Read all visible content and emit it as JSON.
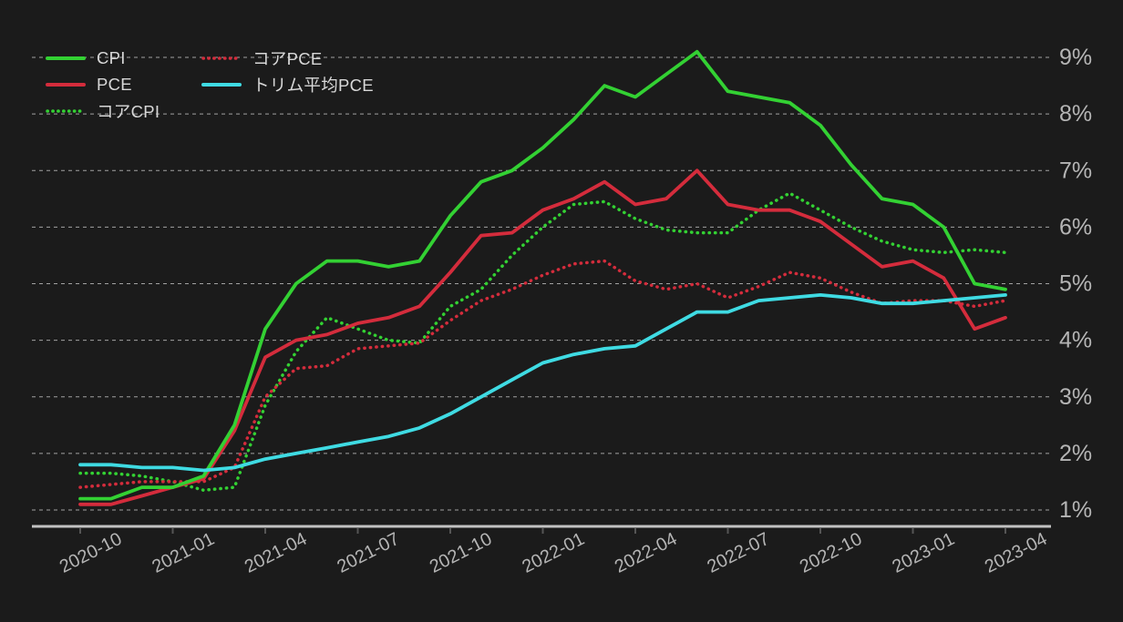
{
  "chart": {
    "background": "#1b1b1b",
    "grid_color": "#d0d0d0",
    "axis_line_color": "#c2c2c2",
    "tick_color": "#555555",
    "tick_label_color": "#b5b5b5",
    "legend_text_color": "#d8d8d8"
  },
  "chart_data": {
    "type": "line",
    "title": "",
    "xlabel": "",
    "ylabel": "",
    "x": [
      "2020-10",
      "2020-11",
      "2020-12",
      "2021-01",
      "2021-02",
      "2021-03",
      "2021-04",
      "2021-05",
      "2021-06",
      "2021-07",
      "2021-08",
      "2021-09",
      "2021-10",
      "2021-11",
      "2021-12",
      "2022-01",
      "2022-02",
      "2022-03",
      "2022-04",
      "2022-05",
      "2022-06",
      "2022-07",
      "2022-08",
      "2022-09",
      "2022-10",
      "2022-11",
      "2022-12",
      "2023-01",
      "2023-02",
      "2023-03",
      "2023-04"
    ],
    "x_tick_labels": [
      "2020-10",
      "2021-01",
      "2021-04",
      "2021-07",
      "2021-10",
      "2022-01",
      "2022-04",
      "2022-07",
      "2022-10",
      "2023-01",
      "2023-04"
    ],
    "y_tick_labels": [
      "1%",
      "2%",
      "3%",
      "4%",
      "5%",
      "6%",
      "7%",
      "8%",
      "9%"
    ],
    "y_ticks": [
      1,
      2,
      3,
      4,
      5,
      6,
      7,
      8,
      9
    ],
    "ylim": [
      1,
      9
    ],
    "grid": true,
    "legend_position": "top-left",
    "series": [
      {
        "name": "CPI",
        "slug": "cpi",
        "color": "#33d133",
        "style": "solid",
        "values": [
          1.2,
          1.2,
          1.4,
          1.4,
          1.6,
          2.5,
          4.2,
          5.0,
          5.4,
          5.4,
          5.3,
          5.4,
          6.2,
          6.8,
          7.0,
          7.4,
          7.9,
          8.5,
          8.3,
          8.7,
          9.1,
          8.4,
          8.3,
          8.2,
          7.8,
          7.1,
          6.5,
          6.4,
          6.0,
          5.0,
          4.9
        ]
      },
      {
        "name": "PCE",
        "slug": "pce",
        "color": "#d42c3c",
        "style": "solid",
        "values": [
          1.1,
          1.1,
          1.25,
          1.4,
          1.55,
          2.4,
          3.7,
          4.0,
          4.1,
          4.3,
          4.4,
          4.6,
          5.2,
          5.85,
          5.9,
          6.3,
          6.5,
          6.8,
          6.4,
          6.5,
          7.0,
          6.4,
          6.3,
          6.3,
          6.1,
          5.7,
          5.3,
          5.4,
          5.1,
          4.2,
          4.4
        ]
      },
      {
        "name": "コアCPI",
        "slug": "core-cpi",
        "color": "#33d133",
        "style": "dotted",
        "values": [
          1.65,
          1.65,
          1.6,
          1.5,
          1.35,
          1.4,
          2.85,
          3.8,
          4.4,
          4.2,
          4.0,
          3.95,
          4.6,
          4.9,
          5.5,
          6.0,
          6.4,
          6.45,
          6.15,
          5.95,
          5.9,
          5.9,
          6.3,
          6.6,
          6.3,
          6.0,
          5.75,
          5.6,
          5.55,
          5.6,
          5.55
        ]
      },
      {
        "name": "コアPCE",
        "slug": "core-pce",
        "color": "#d42c3c",
        "style": "dotted",
        "values": [
          1.4,
          1.45,
          1.5,
          1.5,
          1.5,
          1.75,
          3.0,
          3.5,
          3.55,
          3.85,
          3.9,
          3.95,
          4.35,
          4.7,
          4.9,
          5.15,
          5.35,
          5.4,
          5.05,
          4.9,
          5.0,
          4.75,
          4.95,
          5.2,
          5.1,
          4.85,
          4.65,
          4.7,
          4.7,
          4.6,
          4.7
        ]
      },
      {
        "name": "トリム平均PCE",
        "slug": "trimmed-mean-pce",
        "color": "#3fdbe3",
        "style": "solid",
        "values": [
          1.8,
          1.8,
          1.75,
          1.75,
          1.7,
          1.75,
          1.9,
          2.0,
          2.1,
          2.2,
          2.3,
          2.45,
          2.7,
          3.0,
          3.3,
          3.6,
          3.75,
          3.85,
          3.9,
          4.2,
          4.5,
          4.5,
          4.7,
          4.75,
          4.8,
          4.75,
          4.65,
          4.65,
          4.7,
          4.75,
          4.8
        ]
      }
    ],
    "legend_columns": [
      [
        "CPI",
        "PCE",
        "コアCPI"
      ],
      [
        "コアPCE",
        "トリム平均PCE"
      ]
    ]
  }
}
